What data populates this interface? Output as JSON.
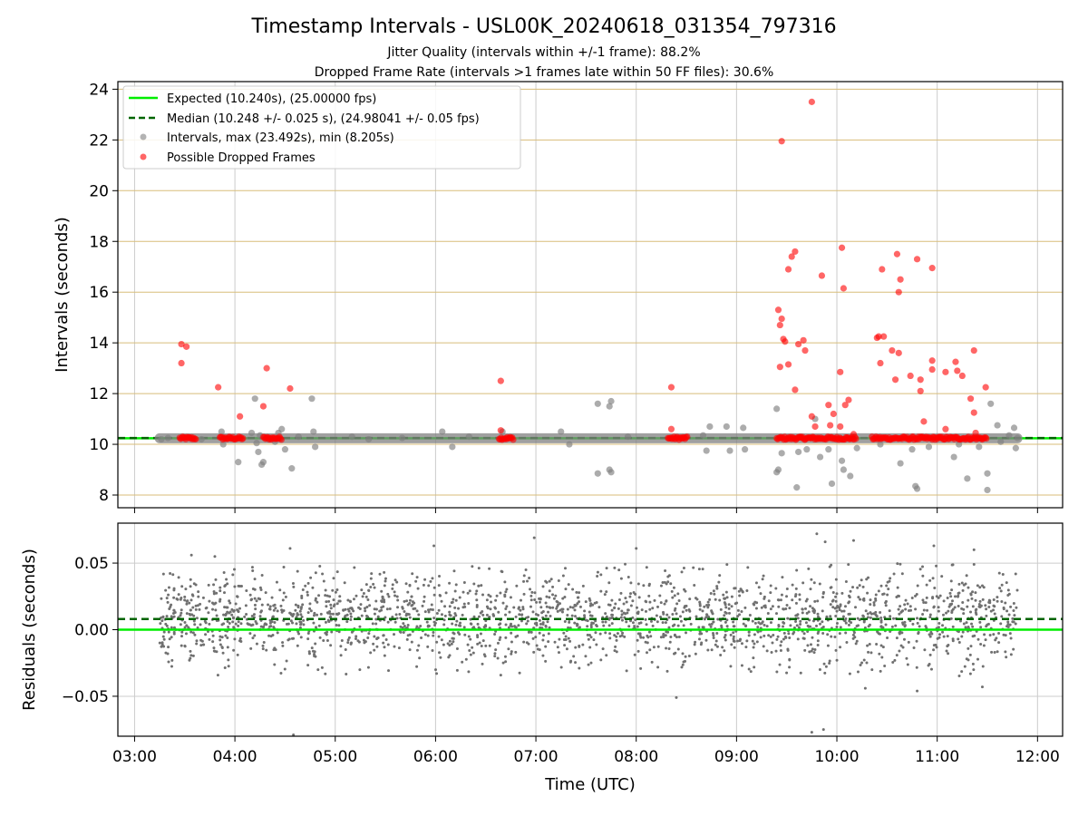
{
  "figure": {
    "title": "Timestamp Intervals - USL00K_20240618_031354_797316",
    "subtitle_1": "Jitter Quality (intervals within +/-1 frame): 88.2%",
    "subtitle_2": "Dropped Frame Rate (intervals >1 frames late within 50 FF files): 30.6%",
    "colors": {
      "expected": "#00ee00",
      "median": "#006400",
      "intervals": "#808080",
      "dropped": "#ff0000",
      "y_grid_top": "#d8bd7a",
      "grid": "#cccccc"
    }
  },
  "chart_data": [
    {
      "type": "scatter",
      "panel": "top",
      "xlabel": "",
      "ylabel": "Intervals (seconds)",
      "x_ticks": [
        "03:00",
        "04:00",
        "05:00",
        "06:00",
        "07:00",
        "08:00",
        "09:00",
        "10:00",
        "11:00",
        "12:00"
      ],
      "xlim": [
        "02:50",
        "12:15"
      ],
      "ylim": [
        7.5,
        24.3
      ],
      "y_ticks": [
        8,
        10,
        12,
        14,
        16,
        18,
        20,
        22,
        24
      ],
      "grid": true,
      "legend_position": "top-left",
      "legend": [
        {
          "label": "Expected (10.240s), (25.00000 fps)",
          "kind": "line",
          "color": "#00ee00"
        },
        {
          "label": "Median (10.248 +/- 0.025 s), (24.98041 +/- 0.05 fps)",
          "kind": "dashed",
          "color": "#006400"
        },
        {
          "label": "Intervals, max (23.492s), min (8.205s)",
          "kind": "marker",
          "color": "#808080"
        },
        {
          "label": "Possible Dropped Frames",
          "kind": "marker",
          "color": "#ff0000"
        }
      ],
      "reference_lines": [
        {
          "name": "Expected",
          "y": 10.24
        },
        {
          "name": "Median",
          "y": 10.248
        }
      ],
      "band": {
        "x_start": "03:15",
        "x_end": "11:48",
        "y": 10.24
      },
      "dense_dropped_segments": [
        [
          "03:27",
          "03:37"
        ],
        [
          "03:51",
          "04:05"
        ],
        [
          "04:17",
          "04:28"
        ],
        [
          "06:38",
          "06:47"
        ],
        [
          "08:19",
          "08:31"
        ],
        [
          "09:24",
          "10:12"
        ],
        [
          "10:21",
          "11:30"
        ]
      ],
      "series": [
        {
          "name": "Intervals, max (23.492s), min (8.205s)",
          "points": [
            [
              "03:16",
              10.2
            ],
            [
              "03:20",
              10.25
            ],
            [
              "03:40",
              10.2
            ],
            [
              "03:52",
              10.5
            ],
            [
              "03:53",
              10.0
            ],
            [
              "04:02",
              9.3
            ],
            [
              "04:10",
              10.45
            ],
            [
              "04:12",
              11.8
            ],
            [
              "04:13",
              10.05
            ],
            [
              "04:14",
              9.7
            ],
            [
              "04:15",
              10.35
            ],
            [
              "04:16",
              9.2
            ],
            [
              "04:17",
              9.3
            ],
            [
              "04:20",
              10.2
            ],
            [
              "04:24",
              10.1
            ],
            [
              "04:26",
              10.45
            ],
            [
              "04:28",
              10.6
            ],
            [
              "04:30",
              9.8
            ],
            [
              "04:34",
              9.05
            ],
            [
              "04:38",
              10.3
            ],
            [
              "04:46",
              11.8
            ],
            [
              "04:47",
              10.5
            ],
            [
              "04:48",
              9.9
            ],
            [
              "05:10",
              10.3
            ],
            [
              "05:20",
              10.2
            ],
            [
              "05:40",
              10.25
            ],
            [
              "06:04",
              10.5
            ],
            [
              "06:10",
              9.9
            ],
            [
              "06:20",
              10.3
            ],
            [
              "06:40",
              10.5
            ],
            [
              "07:15",
              10.5
            ],
            [
              "07:20",
              10.0
            ],
            [
              "07:37",
              11.6
            ],
            [
              "07:37",
              8.85
            ],
            [
              "07:44",
              11.5
            ],
            [
              "07:44",
              9.0
            ],
            [
              "07:45",
              8.9
            ],
            [
              "07:45",
              11.7
            ],
            [
              "07:55",
              10.3
            ],
            [
              "08:40",
              10.35
            ],
            [
              "08:42",
              9.75
            ],
            [
              "08:44",
              10.7
            ],
            [
              "08:54",
              10.7
            ],
            [
              "08:56",
              9.75
            ],
            [
              "09:04",
              10.65
            ],
            [
              "09:05",
              9.8
            ],
            [
              "09:24",
              11.4
            ],
            [
              "09:24",
              8.9
            ],
            [
              "09:25",
              9.0
            ],
            [
              "09:27",
              9.65
            ],
            [
              "09:36",
              8.3
            ],
            [
              "09:37",
              9.7
            ],
            [
              "09:42",
              9.8
            ],
            [
              "09:47",
              11.0
            ],
            [
              "09:50",
              9.5
            ],
            [
              "09:55",
              9.8
            ],
            [
              "09:57",
              8.45
            ],
            [
              "10:03",
              9.35
            ],
            [
              "10:04",
              9.0
            ],
            [
              "10:08",
              8.75
            ],
            [
              "10:12",
              9.85
            ],
            [
              "10:26",
              10.0
            ],
            [
              "10:38",
              9.25
            ],
            [
              "10:45",
              9.8
            ],
            [
              "10:47",
              8.35
            ],
            [
              "10:48",
              8.25
            ],
            [
              "10:55",
              9.9
            ],
            [
              "11:10",
              9.5
            ],
            [
              "11:13",
              10.0
            ],
            [
              "11:18",
              8.65
            ],
            [
              "11:25",
              9.9
            ],
            [
              "11:30",
              8.85
            ],
            [
              "11:30",
              8.2
            ],
            [
              "11:32",
              11.6
            ],
            [
              "11:36",
              10.75
            ],
            [
              "11:38",
              10.1
            ],
            [
              "11:43",
              10.35
            ],
            [
              "11:46",
              10.65
            ],
            [
              "11:47",
              9.85
            ],
            [
              "11:48",
              10.25
            ]
          ]
        },
        {
          "name": "Possible Dropped Frames",
          "points": [
            [
              "03:28",
              13.95
            ],
            [
              "03:28",
              13.2
            ],
            [
              "03:31",
              13.85
            ],
            [
              "03:50",
              12.25
            ],
            [
              "04:03",
              11.1
            ],
            [
              "04:17",
              11.5
            ],
            [
              "04:19",
              13.0
            ],
            [
              "04:33",
              12.2
            ],
            [
              "06:39",
              12.5
            ],
            [
              "06:39",
              10.55
            ],
            [
              "08:21",
              12.25
            ],
            [
              "08:21",
              10.6
            ],
            [
              "09:25",
              15.3
            ],
            [
              "09:26",
              14.7
            ],
            [
              "09:26",
              13.05
            ],
            [
              "09:27",
              21.95
            ],
            [
              "09:27",
              14.95
            ],
            [
              "09:28",
              14.15
            ],
            [
              "09:29",
              14.05
            ],
            [
              "09:31",
              16.9
            ],
            [
              "09:31",
              13.15
            ],
            [
              "09:33",
              17.4
            ],
            [
              "09:35",
              17.6
            ],
            [
              "09:35",
              12.15
            ],
            [
              "09:37",
              13.95
            ],
            [
              "09:40",
              14.1
            ],
            [
              "09:41",
              13.7
            ],
            [
              "09:45",
              23.5
            ],
            [
              "09:45",
              11.1
            ],
            [
              "09:47",
              10.7
            ],
            [
              "09:51",
              16.65
            ],
            [
              "09:55",
              11.55
            ],
            [
              "09:56",
              10.75
            ],
            [
              "09:58",
              11.2
            ],
            [
              "10:02",
              10.7
            ],
            [
              "10:02",
              12.85
            ],
            [
              "10:03",
              17.75
            ],
            [
              "10:04",
              16.15
            ],
            [
              "10:05",
              11.55
            ],
            [
              "10:07",
              11.75
            ],
            [
              "10:10",
              10.4
            ],
            [
              "10:24",
              14.2
            ],
            [
              "10:25",
              14.25
            ],
            [
              "10:26",
              13.2
            ],
            [
              "10:27",
              16.9
            ],
            [
              "10:28",
              14.25
            ],
            [
              "10:33",
              13.7
            ],
            [
              "10:35",
              12.55
            ],
            [
              "10:36",
              17.5
            ],
            [
              "10:37",
              16.0
            ],
            [
              "10:37",
              13.6
            ],
            [
              "10:38",
              16.5
            ],
            [
              "10:44",
              12.7
            ],
            [
              "10:48",
              17.3
            ],
            [
              "10:50",
              12.55
            ],
            [
              "10:50",
              12.1
            ],
            [
              "10:52",
              10.9
            ],
            [
              "10:57",
              13.3
            ],
            [
              "10:57",
              12.95
            ],
            [
              "10:57",
              16.95
            ],
            [
              "11:05",
              12.85
            ],
            [
              "11:05",
              10.6
            ],
            [
              "11:11",
              13.25
            ],
            [
              "11:12",
              12.9
            ],
            [
              "11:15",
              12.7
            ],
            [
              "11:20",
              11.8
            ],
            [
              "11:22",
              13.7
            ],
            [
              "11:22",
              11.25
            ],
            [
              "11:23",
              10.45
            ],
            [
              "11:29",
              12.25
            ]
          ]
        }
      ]
    },
    {
      "type": "scatter",
      "panel": "bottom",
      "xlabel": "Time (UTC)",
      "ylabel": "Residuals (seconds)",
      "x_ticks": [
        "03:00",
        "04:00",
        "05:00",
        "06:00",
        "07:00",
        "08:00",
        "09:00",
        "10:00",
        "11:00",
        "12:00"
      ],
      "xlim": [
        "02:50",
        "12:15"
      ],
      "ylim": [
        -0.08,
        0.08
      ],
      "y_ticks": [
        0.05,
        0.0,
        -0.05
      ],
      "y_tick_labels": [
        "0.05",
        "0.00",
        "−0.05"
      ],
      "grid": true,
      "reference_lines": [
        {
          "name": "Expected",
          "y": 0.0
        },
        {
          "name": "Median",
          "y": 0.008
        }
      ],
      "residual_spread": {
        "x_start": "03:15",
        "x_end": "11:48",
        "mean": 0.008,
        "std": 0.017,
        "count": 2200
      },
      "residual_outliers": [
        [
          "03:34",
          0.056
        ],
        [
          "03:48",
          0.055
        ],
        [
          "04:33",
          0.061
        ],
        [
          "04:35",
          -0.079
        ],
        [
          "05:59",
          0.063
        ],
        [
          "06:59",
          0.069
        ],
        [
          "08:00",
          0.061
        ],
        [
          "08:24",
          -0.051
        ],
        [
          "09:45",
          -0.077
        ],
        [
          "09:52",
          -0.075
        ],
        [
          "09:48",
          0.072
        ],
        [
          "09:53",
          0.066
        ],
        [
          "10:10",
          0.067
        ],
        [
          "10:17",
          -0.044
        ],
        [
          "10:48",
          -0.046
        ],
        [
          "10:58",
          0.063
        ],
        [
          "11:22",
          0.06
        ],
        [
          "11:27",
          -0.043
        ]
      ]
    }
  ]
}
